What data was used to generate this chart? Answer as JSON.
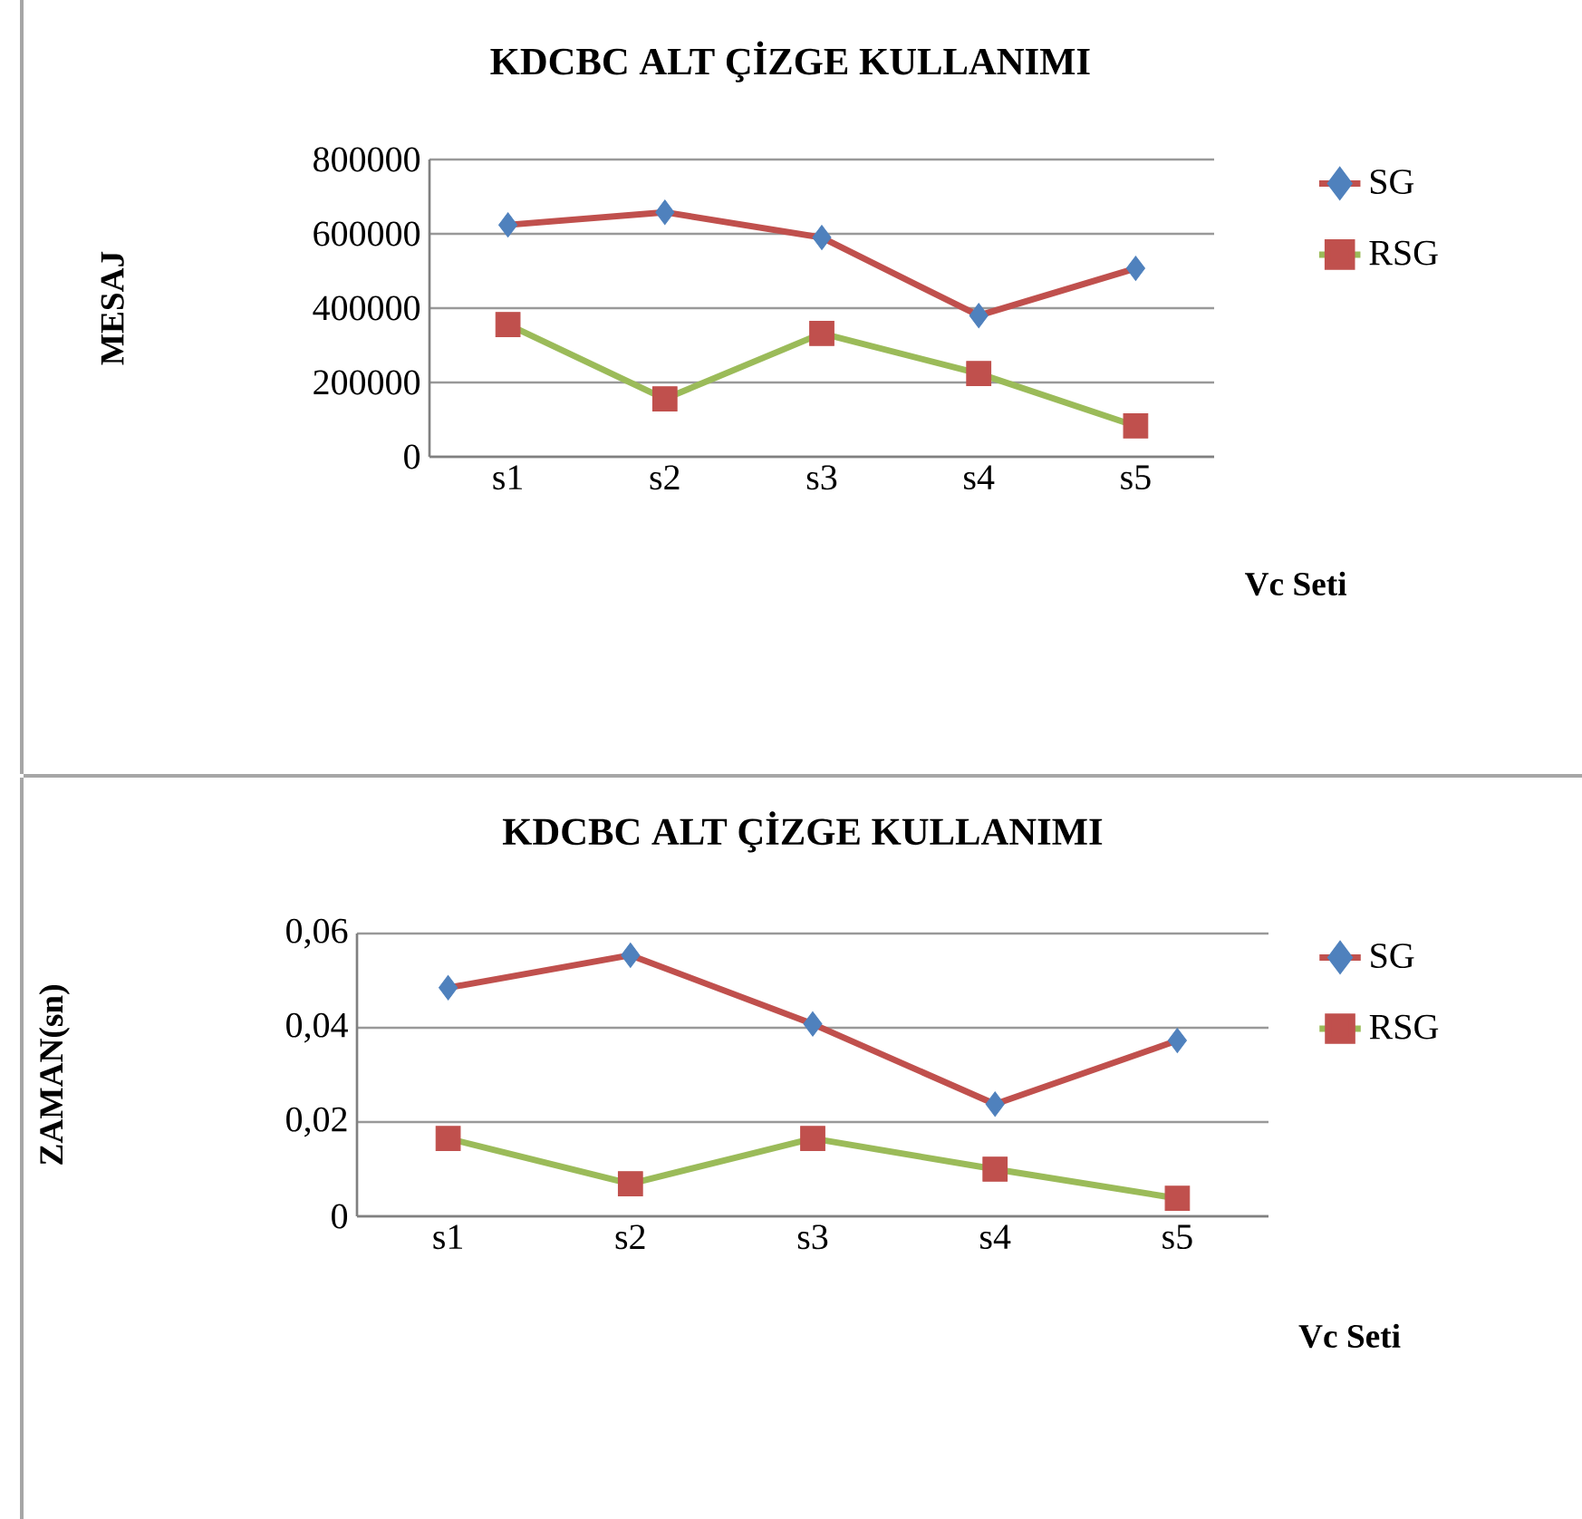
{
  "chart_data": [
    {
      "type": "line",
      "title": "KDCBC ALT ÇİZGE KULLANIMI",
      "ylabel": "MESAJ",
      "xlabel": "Vc Seti",
      "categories": [
        "s1",
        "s2",
        "s3",
        "s4",
        "s5"
      ],
      "series": [
        {
          "name": "SG",
          "color": "#c0504d",
          "marker": "diamond",
          "colors": [
            "#4f81bd",
            "#4f81bd",
            "#4f81bd",
            "#4f81bd",
            "#4f81bd"
          ],
          "values": [
            624000,
            658000,
            590000,
            380000,
            507000
          ]
        },
        {
          "name": "RSG",
          "color": "#9bbb59",
          "marker": "square",
          "colors": [
            "#c0504d",
            "#c0504d",
            "#c0504d",
            "#c0504d",
            "#c0504d"
          ],
          "values": [
            356000,
            156000,
            332000,
            224000,
            83000
          ]
        }
      ],
      "ylim": [
        0,
        800000
      ],
      "yticks": [
        0,
        200000,
        400000,
        600000,
        800000
      ],
      "grid": "y",
      "legend": "right"
    },
    {
      "type": "line",
      "title": "KDCBC ALT ÇİZGE KULLANIMI",
      "ylabel": "ZAMAN(sn)",
      "xlabel": "Vc Seti",
      "categories": [
        "s1",
        "s2",
        "s3",
        "s4",
        "s5"
      ],
      "series": [
        {
          "name": "SG",
          "color": "#c0504d",
          "marker": "diamond",
          "colors": [
            "#4f81bd",
            "#4f81bd",
            "#4f81bd",
            "#4f81bd",
            "#4f81bd"
          ],
          "values": [
            0.0485,
            0.0554,
            0.0408,
            0.0238,
            0.0373
          ]
        },
        {
          "name": "RSG",
          "color": "#9bbb59",
          "marker": "square",
          "colors": [
            "#c0504d",
            "#c0504d",
            "#c0504d",
            "#c0504d",
            "#c0504d"
          ],
          "values": [
            0.0165,
            0.0069,
            0.0165,
            0.01,
            0.0038
          ]
        }
      ],
      "ylim": [
        0,
        0.06
      ],
      "yticks": [
        0,
        {
          "value": 0.02,
          "label": "0,02"
        },
        {
          "value": 0.04,
          "label": "0,04"
        },
        {
          "value": 0.06,
          "label": "0,06"
        }
      ],
      "grid": "y",
      "legend": "right"
    }
  ]
}
